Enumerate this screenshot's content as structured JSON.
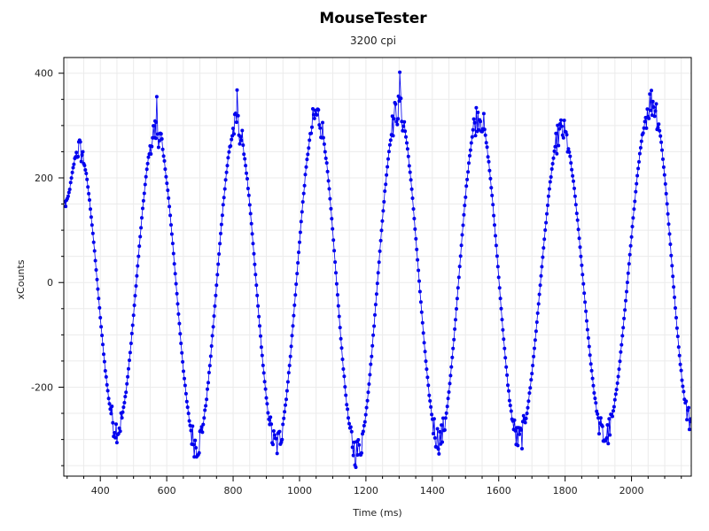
{
  "chart_data": {
    "type": "line",
    "title": "MouseTester",
    "subtitle": "3200 cpi",
    "xlabel": "Time (ms)",
    "ylabel": "xCounts",
    "xlim": [
      290,
      2180
    ],
    "ylim": [
      -370,
      430
    ],
    "x_major_ticks": [
      400,
      600,
      800,
      1000,
      1200,
      1400,
      1600,
      1800,
      2000
    ],
    "x_minor_step": 50,
    "y_major_ticks": [
      -200,
      0,
      200,
      400
    ],
    "y_minor_step": 50,
    "x_tick_labels": [
      "400",
      "600",
      "800",
      "1000",
      "1200",
      "1400",
      "1600",
      "1800",
      "2000"
    ],
    "y_tick_labels": [
      "-200",
      "0",
      "200",
      "400"
    ],
    "grid": true,
    "legend": "none",
    "series_color": "#0000ee",
    "grid_color": "#ebebeb",
    "series": [
      {
        "extrema": [
          {
            "x": 293,
            "y": 150
          },
          {
            "x": 335,
            "y": 255
          },
          {
            "x": 450,
            "y": -280
          },
          {
            "x": 568,
            "y": 290
          },
          {
            "x": 690,
            "y": -310
          },
          {
            "x": 810,
            "y": 300
          },
          {
            "x": 930,
            "y": -310
          },
          {
            "x": 1052,
            "y": 320
          },
          {
            "x": 1172,
            "y": -325
          },
          {
            "x": 1298,
            "y": 330
          },
          {
            "x": 1420,
            "y": -300
          },
          {
            "x": 1540,
            "y": 320
          },
          {
            "x": 1660,
            "y": -300
          },
          {
            "x": 1790,
            "y": 290
          },
          {
            "x": 1920,
            "y": -295
          },
          {
            "x": 2062,
            "y": 345
          },
          {
            "x": 2180,
            "y": -265
          }
        ],
        "spikes": [
          {
            "x": 570,
            "y": 355
          },
          {
            "x": 812,
            "y": 368
          },
          {
            "x": 1302,
            "y": 402
          }
        ],
        "sample_interval_ms": 2.5
      }
    ]
  }
}
